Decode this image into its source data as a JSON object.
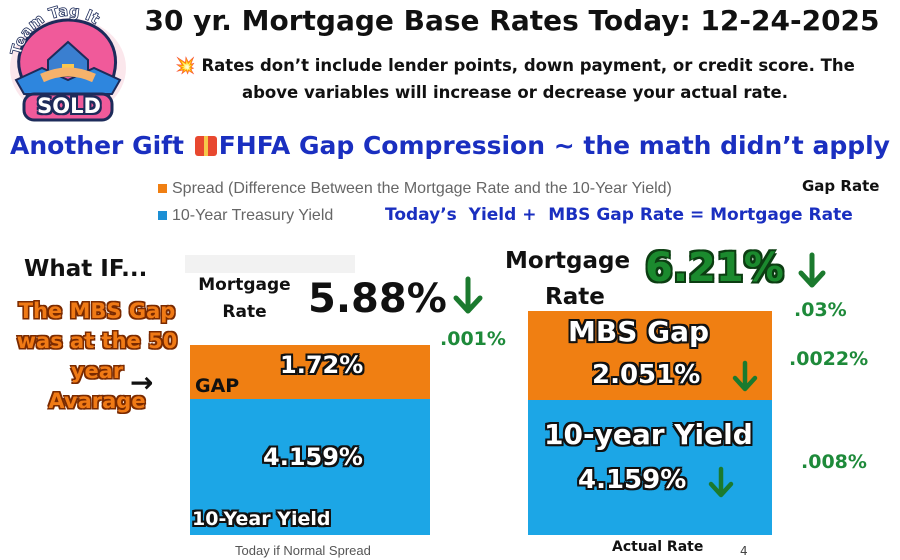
{
  "logo": {
    "arc_text": "Team Tag It",
    "badge_text": "SOLD"
  },
  "header": {
    "title": "30 yr. Mortgage Base Rates Today: 12-24-2025",
    "note_icon": "💥",
    "note_line1": "Rates don’t include lender points, down payment, or credit score. The",
    "note_line2": "above variables will increase or decrease your actual rate.",
    "headline_part1": "Another Gift ",
    "headline_part2": "FHFA Gap Compression ~ the math didn’t apply"
  },
  "legend": {
    "spread_label": "Spread (Difference Between the Mortgage Rate and the 10-Year Yield)",
    "treasury_label": "10-Year Treasury Yield",
    "gap_rate_label": "Gap Rate",
    "formula": "Today’s  Yield +  MBS Gap Rate = Mortgage Rate"
  },
  "left_panel": {
    "what_if": "What IF...",
    "mbs_text_lines": [
      "The MBS Gap",
      "was at the 50",
      "year",
      "Avarage"
    ],
    "mortgage_label_lines": [
      "Mortgage",
      "Rate"
    ],
    "mortgage_rate": "5.88%",
    "change": ".001%",
    "gap_label": "GAP",
    "gap_value": "1.72%",
    "yield_value": "4.159%",
    "yield_label": "10-Year Yield",
    "x_label": "Today if Normal Spread"
  },
  "right_panel": {
    "mortgage_label_lines": [
      "Mortgage",
      "Rate"
    ],
    "mortgage_rate": "6.21%",
    "change_rate": ".03%",
    "gap_label": "MBS Gap",
    "gap_value": "2.051%",
    "change_gap": ".0022%",
    "yield_label": "10-year Yield",
    "yield_value": "4.159%",
    "change_yield": ".008%",
    "x_label": "Actual Rate",
    "page_num": "4"
  },
  "colors": {
    "spread": "#f07f12",
    "treasury": "#1ca6e6",
    "green": "#1e8a3a",
    "blue_text": "#1a2fc0"
  },
  "chart_data": {
    "type": "bar",
    "stacked": true,
    "categories": [
      "Today if Normal Spread",
      "Actual Rate"
    ],
    "series": [
      {
        "name": "10-Year Treasury Yield",
        "values": [
          4.159,
          4.159
        ]
      },
      {
        "name": "Spread (Difference Between the Mortgage Rate and the 10-Year Yield)",
        "values": [
          1.72,
          2.051
        ]
      }
    ],
    "totals": [
      5.88,
      6.21
    ],
    "legend_position": "top-left"
  }
}
